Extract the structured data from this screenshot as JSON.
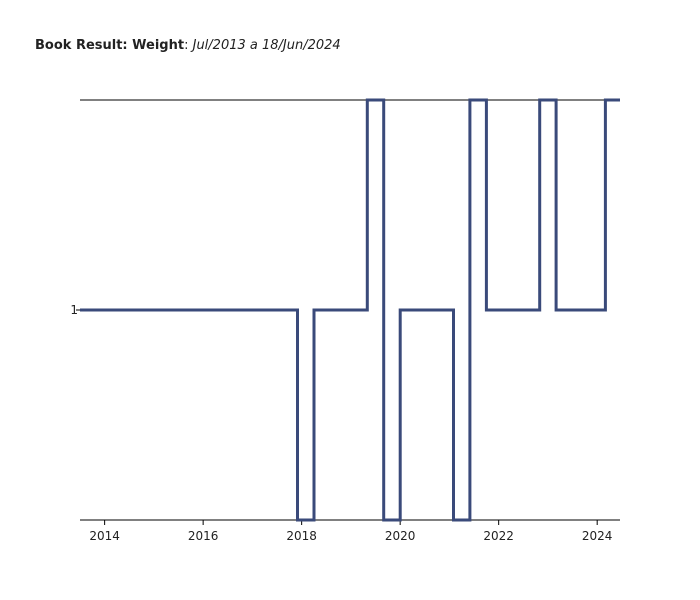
{
  "title": {
    "bold": "Book Result: Weight",
    "sep": ": ",
    "range": "Jul/2013 a 18/Jun/2024"
  },
  "chart_data": {
    "type": "line",
    "step": true,
    "x_ticks": [
      "2014",
      "2016",
      "2018",
      "2020",
      "2022",
      "2024"
    ],
    "y_ticks": [
      "1"
    ],
    "xlim": [
      "2013-07",
      "2024-06-18"
    ],
    "ylim": [
      0,
      2
    ],
    "color": "#3a4a7a",
    "series": [
      {
        "points": [
          [
            "2013-07",
            1
          ],
          [
            "2017-12",
            0
          ],
          [
            "2018-04",
            1
          ],
          [
            "2019-05",
            2
          ],
          [
            "2019-09",
            0
          ],
          [
            "2020-01",
            1
          ],
          [
            "2021-02",
            0
          ],
          [
            "2021-06",
            2
          ],
          [
            "2021-10",
            1
          ],
          [
            "2022-11",
            2
          ],
          [
            "2023-03",
            1
          ],
          [
            "2024-03",
            2
          ],
          [
            "2024-06-18",
            2
          ]
        ]
      }
    ]
  }
}
